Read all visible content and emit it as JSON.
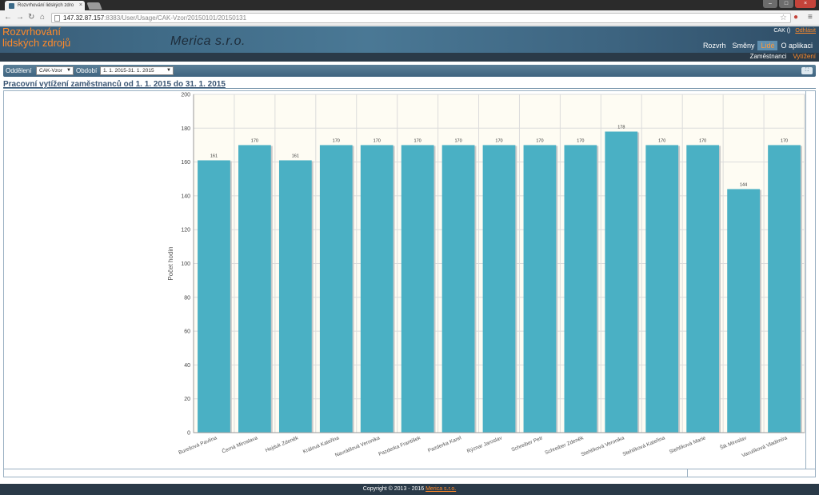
{
  "browser": {
    "tab_title": "Rozvrhování lidských zdro",
    "tab_close": "×",
    "url_host": "147.32.87.157",
    "url_rest": ":8383/User/Usage/CAK-Vzor/20150101/20150131",
    "window_minimize": "–",
    "window_maximize": "□",
    "window_close": "×"
  },
  "header": {
    "app_title_line1": "Rozvrhování",
    "app_title_line2": "lidských zdrojů",
    "company": "Merica s.r.o.",
    "user": "CAK ()",
    "logout": "Odhlásit",
    "nav": [
      "Rozvrh",
      "Směny",
      "Lidé",
      "O aplikaci"
    ],
    "nav_active": "Lidé",
    "subnav": [
      "Zaměstnanci",
      "Vytížení"
    ],
    "subnav_active": "Vytížení"
  },
  "filters": {
    "department_label": "Oddělení",
    "department_value": "CAK-Vzor",
    "period_label": "Období",
    "period_value": "1. 1. 2015-31. 1. 2015"
  },
  "report_title": "Pracovní vytížení zaměstnanců od 1. 1. 2015 do 31. 1. 2015",
  "chart_data": {
    "type": "bar",
    "title": "",
    "xlabel": "",
    "ylabel": "Počet hodin",
    "ylim": [
      0,
      200
    ],
    "yticks": [
      0,
      20,
      40,
      60,
      80,
      100,
      120,
      140,
      160,
      180,
      200
    ],
    "grid": true,
    "categories": [
      "Burešová Pavlína",
      "Černá Miroslava",
      "Hejduk Zdeněk",
      "Králová Kateřina",
      "Navrátilová Veronika",
      "Pazderka František",
      "Pazderka Karel",
      "Rýznar Jaroslav",
      "Schreiber Petr",
      "Schreiber Zdeněk",
      "Stehlíková Veronika",
      "Stehlíková Kateřina",
      "Stehlíková Marie",
      "Šik Miroslav",
      "Vaculíková Vladimíra"
    ],
    "values": [
      161,
      170,
      161,
      170,
      170,
      170,
      170,
      170,
      170,
      170,
      178,
      170,
      170,
      144,
      170
    ],
    "bar_color": "#4ab0c4",
    "plot_bg": "#fefcf3"
  },
  "footer": {
    "copyright": "Copyright © 2013 - 2016",
    "company_link": "Merica s.r.o."
  }
}
